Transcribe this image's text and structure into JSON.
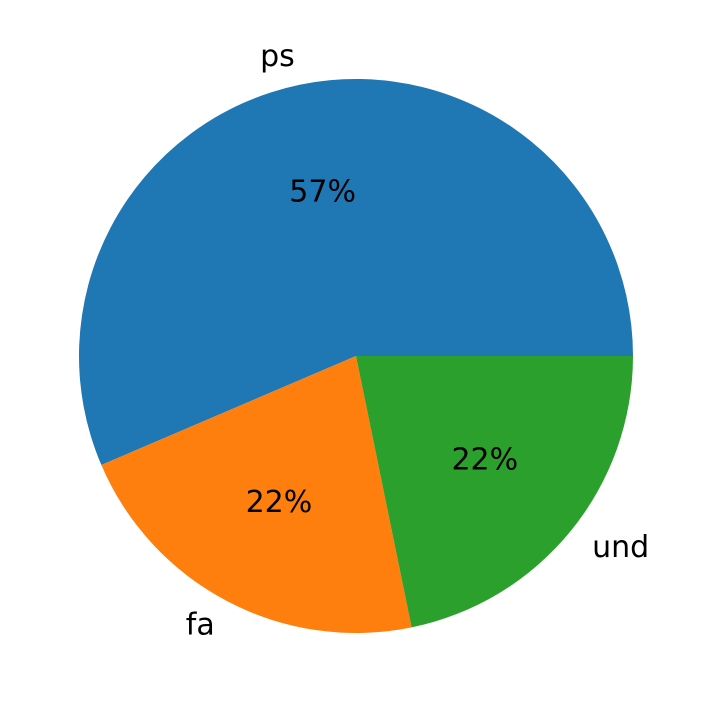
{
  "chart_data": {
    "type": "pie",
    "categories": [
      "ps",
      "fa",
      "und"
    ],
    "values": [
      57,
      22,
      22
    ],
    "value_labels": [
      "57%",
      "22%",
      "22%"
    ],
    "colors": [
      "#1f77b4",
      "#ff7f0e",
      "#2ca02c"
    ]
  }
}
